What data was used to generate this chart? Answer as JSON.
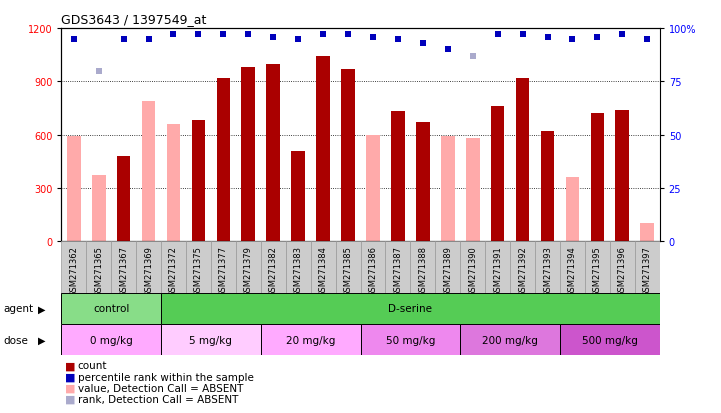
{
  "title": "GDS3643 / 1397549_at",
  "samples": [
    "GSM271362",
    "GSM271365",
    "GSM271367",
    "GSM271369",
    "GSM271372",
    "GSM271375",
    "GSM271377",
    "GSM271379",
    "GSM271382",
    "GSM271383",
    "GSM271384",
    "GSM271385",
    "GSM271386",
    "GSM271387",
    "GSM271388",
    "GSM271389",
    "GSM271390",
    "GSM271391",
    "GSM271392",
    "GSM271393",
    "GSM271394",
    "GSM271395",
    "GSM271396",
    "GSM271397"
  ],
  "count_values": [
    0,
    0,
    480,
    0,
    0,
    680,
    920,
    980,
    1000,
    510,
    1040,
    970,
    0,
    730,
    670,
    0,
    0,
    760,
    920,
    620,
    0,
    720,
    740,
    0
  ],
  "absent_values": [
    590,
    370,
    0,
    790,
    660,
    0,
    0,
    0,
    0,
    0,
    0,
    0,
    600,
    0,
    0,
    590,
    580,
    0,
    0,
    0,
    360,
    0,
    0,
    100
  ],
  "percentile_rank": [
    95,
    85,
    95,
    95,
    97,
    97,
    97,
    97,
    96,
    95,
    97,
    97,
    96,
    95,
    93,
    90,
    94,
    97,
    97,
    96,
    95,
    96,
    97,
    95
  ],
  "absent_rank_vals": [
    0,
    80,
    0,
    0,
    0,
    0,
    0,
    0,
    0,
    0,
    0,
    0,
    0,
    0,
    0,
    0,
    87,
    0,
    0,
    0,
    0,
    0,
    0,
    0
  ],
  "is_absent_count": [
    true,
    true,
    false,
    true,
    true,
    false,
    false,
    false,
    false,
    false,
    false,
    false,
    true,
    false,
    false,
    true,
    true,
    false,
    false,
    false,
    true,
    false,
    false,
    true
  ],
  "is_absent_rank": [
    false,
    true,
    false,
    false,
    false,
    false,
    false,
    false,
    false,
    false,
    false,
    false,
    false,
    false,
    false,
    false,
    true,
    false,
    false,
    false,
    false,
    false,
    false,
    false
  ],
  "agent_groups": [
    {
      "label": "control",
      "start": 0,
      "end": 4,
      "color": "#88dd88"
    },
    {
      "label": "D-serine",
      "start": 4,
      "end": 24,
      "color": "#55cc55"
    }
  ],
  "dose_groups": [
    {
      "label": "0 mg/kg",
      "start": 0,
      "end": 4,
      "color": "#ffaaff"
    },
    {
      "label": "5 mg/kg",
      "start": 4,
      "end": 8,
      "color": "#ffccff"
    },
    {
      "label": "20 mg/kg",
      "start": 8,
      "end": 12,
      "color": "#ffaaff"
    },
    {
      "label": "50 mg/kg",
      "start": 12,
      "end": 16,
      "color": "#ee88ee"
    },
    {
      "label": "200 mg/kg",
      "start": 16,
      "end": 20,
      "color": "#dd77dd"
    },
    {
      "label": "500 mg/kg",
      "start": 20,
      "end": 24,
      "color": "#cc55cc"
    }
  ],
  "ylim_left": [
    0,
    1200
  ],
  "ylim_right": [
    0,
    100
  ],
  "yticks_left": [
    0,
    300,
    600,
    900,
    1200
  ],
  "yticks_right": [
    0,
    25,
    50,
    75,
    100
  ],
  "bar_color_count": "#aa0000",
  "bar_color_absent": "#ffaaaa",
  "dot_color_rank": "#0000bb",
  "dot_color_absent_rank": "#aaaacc",
  "bar_width": 0.55,
  "title_fontsize": 9,
  "tick_fontsize": 7,
  "label_fontsize": 7.5
}
